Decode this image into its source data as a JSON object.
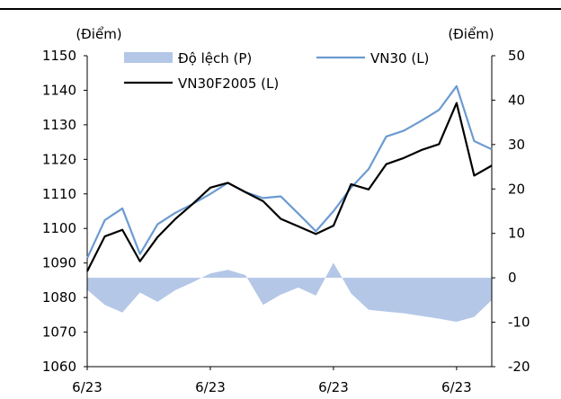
{
  "chart_data": {
    "type": "line",
    "left_axis_label": "(Điểm)",
    "right_axis_label": "(Điểm)",
    "x_tick_labels": [
      "6/23",
      "6/23",
      "6/23",
      "6/23"
    ],
    "y_left": {
      "min": 1060,
      "max": 1150,
      "step": 10,
      "ticks": [
        "1060",
        "1070",
        "1080",
        "1090",
        "1100",
        "1110",
        "1120",
        "1130",
        "1140",
        "1150"
      ]
    },
    "y_right": {
      "min": -20,
      "max": 50,
      "step": 10,
      "ticks": [
        "-20",
        "-10",
        "0",
        "10",
        "20",
        "30",
        "40",
        "50"
      ]
    },
    "legend": [
      "Độ lệch (P)",
      "VN30 (L)",
      "VN30F2005 (L)"
    ],
    "series": [
      {
        "name": "VN30 (L)",
        "axis": "left",
        "kind": "line",
        "color": "#6b9bd1",
        "values": [
          1091.4,
          1102.4,
          1105.8,
          1092.6,
          1101.2,
          1104.5,
          1107.1,
          1110,
          1113.2,
          1110.5,
          1108.8,
          1109.3,
          1104.3,
          1099.2,
          1105,
          1111.8,
          1117.2,
          1126.6,
          1128.3,
          1131.2,
          1134.3,
          1141.2,
          1125.3,
          1122.9
        ]
      },
      {
        "name": "VN30F2005 (L)",
        "axis": "left",
        "kind": "line",
        "color": "#000000",
        "values": [
          1087.6,
          1097.7,
          1099.6,
          1090.5,
          1097.5,
          1102.7,
          1107.1,
          1111.8,
          1113.2,
          1110.5,
          1107.9,
          1102.8,
          1100.6,
          1098.4,
          1100.8,
          1112.8,
          1111.3,
          1118.6,
          1120.4,
          1122.7,
          1124.4,
          1136.3,
          1115.3,
          1118.2
        ]
      },
      {
        "name": "Độ lệch (P)",
        "axis": "right",
        "kind": "area",
        "color": "#b4c7e7",
        "values": [
          -2.7,
          -6.1,
          -7.8,
          -3.3,
          -5.4,
          -2.8,
          -1,
          1,
          1.8,
          0.6,
          -6.1,
          -3.8,
          -2.2,
          -4,
          3.4,
          -3.5,
          -7.2,
          -7.6,
          -8,
          -8.6,
          -9.2,
          -9.9,
          -8.8,
          -5
        ]
      }
    ]
  }
}
